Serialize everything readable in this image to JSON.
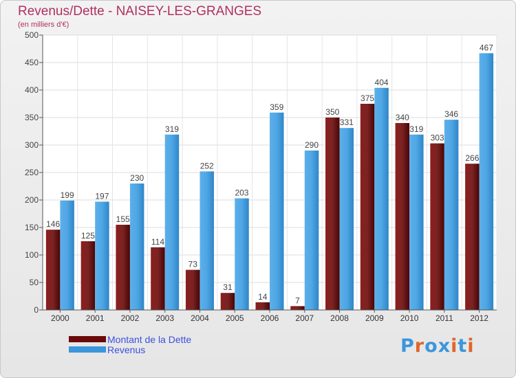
{
  "header": {
    "title": "Revenus/Dette - NAISEY-LES-GRANGES",
    "subtitle": "(en milliers d'€)"
  },
  "legend": {
    "items": [
      {
        "label": "Montant de la Dette",
        "color": "#6b0a0a"
      },
      {
        "label": "Revenus",
        "color": "#3c96dc"
      }
    ]
  },
  "logo": {
    "text": "Proxiti",
    "letter_colors": [
      "#3c96dc",
      "#e0662a",
      "#3c96dc",
      "#3c96dc",
      "#e0662a",
      "#3c96dc",
      "#e0662a"
    ]
  },
  "chart_data": {
    "type": "bar",
    "title": "Revenus/Dette - NAISEY-LES-GRANGES",
    "subtitle": "(en milliers d'€)",
    "categories": [
      "2000",
      "2001",
      "2002",
      "2003",
      "2004",
      "2005",
      "2006",
      "2007",
      "2008",
      "2009",
      "2010",
      "2011",
      "2012"
    ],
    "series": [
      {
        "name": "Montant de la Dette",
        "color": "#6b0a0a",
        "values": [
          146,
          125,
          155,
          114,
          73,
          31,
          14,
          7,
          350,
          375,
          340,
          303,
          266
        ]
      },
      {
        "name": "Revenus",
        "color": "#3c96dc",
        "values": [
          199,
          197,
          230,
          319,
          252,
          203,
          359,
          290,
          331,
          404,
          319,
          346,
          467
        ]
      }
    ],
    "ylim": [
      0,
      500
    ],
    "yticks": [
      0,
      50,
      100,
      150,
      200,
      250,
      300,
      350,
      400,
      450,
      500
    ],
    "grid": true,
    "legend_position": "bottom-left"
  }
}
